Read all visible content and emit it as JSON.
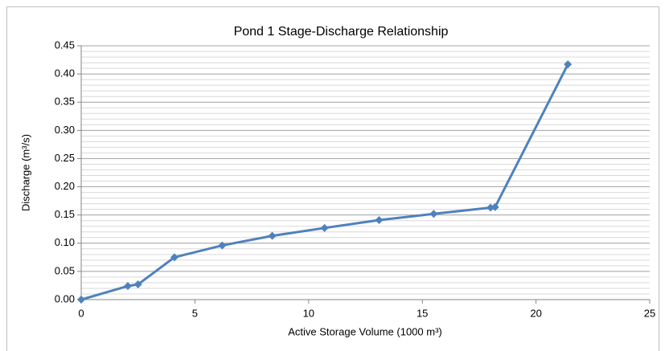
{
  "chart_data": {
    "type": "line",
    "title": "Pond 1 Stage-Discharge Relationship",
    "x_label": "Active Storage Volume (1000 m³)",
    "y_label": "Discharge (m³/s)",
    "series": [
      {
        "name": "Discharge",
        "color": "#4f81bd",
        "x": [
          0,
          2.05,
          2.5,
          4.1,
          6.2,
          8.4,
          10.7,
          13.1,
          15.5,
          18.0,
          18.2,
          21.4
        ],
        "values": [
          0,
          0.024,
          0.027,
          0.075,
          0.096,
          0.113,
          0.127,
          0.141,
          0.152,
          0.163,
          0.164,
          0.417
        ]
      }
    ],
    "xlim": [
      0,
      25
    ],
    "xticks": [
      0,
      5,
      10,
      15,
      20,
      25
    ],
    "ylim": [
      0,
      0.45
    ],
    "yticks": [
      {
        "value": 0,
        "label": "0.00"
      },
      0.05,
      {
        "value": 0.1,
        "label": "0.10"
      },
      0.15,
      {
        "value": 0.2,
        "label": "0.20"
      },
      0.25,
      {
        "value": 0.3,
        "label": "0.30"
      },
      0.35,
      {
        "value": 0.4,
        "label": "0.40"
      },
      0.45
    ],
    "grid": true,
    "minor_grid_step": 0.01
  }
}
